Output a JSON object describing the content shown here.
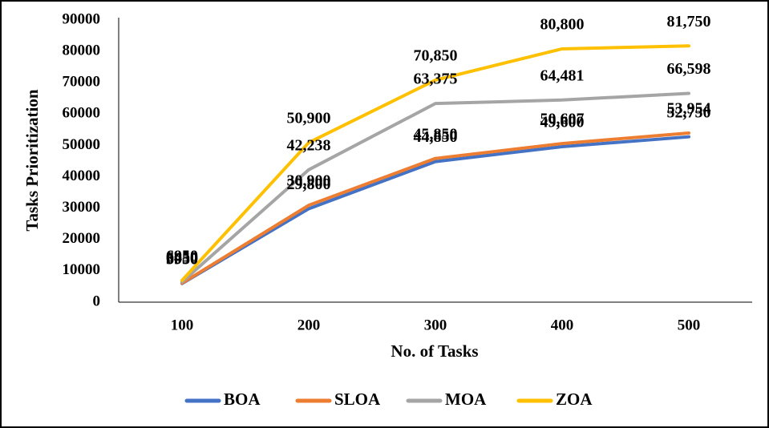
{
  "chart_data": {
    "type": "line",
    "x_label": "No. of Tasks",
    "y_label": "Tasks Prioritization",
    "categories": [
      "100",
      "200",
      "300",
      "400",
      "500"
    ],
    "series": [
      {
        "name": "BOA",
        "color": "#4472c4",
        "values": [
          5950,
          29800,
          44850,
          49600,
          52750
        ],
        "value_labels": [
          "5950",
          "29,800",
          "44,850",
          "49,600",
          "52,750"
        ]
      },
      {
        "name": "SLOA",
        "color": "#ed7d31",
        "values": [
          6050,
          30900,
          45850,
          50607,
          53954
        ],
        "value_labels": [
          "6050",
          "30,900",
          "45,850",
          "50,607",
          "53,954"
        ]
      },
      {
        "name": "MOA",
        "color": "#a5a5a5",
        "values": [
          6450,
          42238,
          63375,
          64481,
          66598
        ],
        "value_labels": [
          "6450",
          "42,238",
          "63,375",
          "64,481",
          "66,598"
        ]
      },
      {
        "name": "ZOA",
        "color": "#ffc000",
        "values": [
          6950,
          50900,
          70850,
          80800,
          81750
        ],
        "value_labels": [
          "6950",
          "50,900",
          "70,850",
          "80,800",
          "81,750"
        ]
      }
    ],
    "ylim": [
      0,
      90000
    ],
    "yticks": [
      0,
      10000,
      20000,
      30000,
      40000,
      50000,
      60000,
      70000,
      80000,
      90000
    ],
    "legend": "bottom"
  }
}
